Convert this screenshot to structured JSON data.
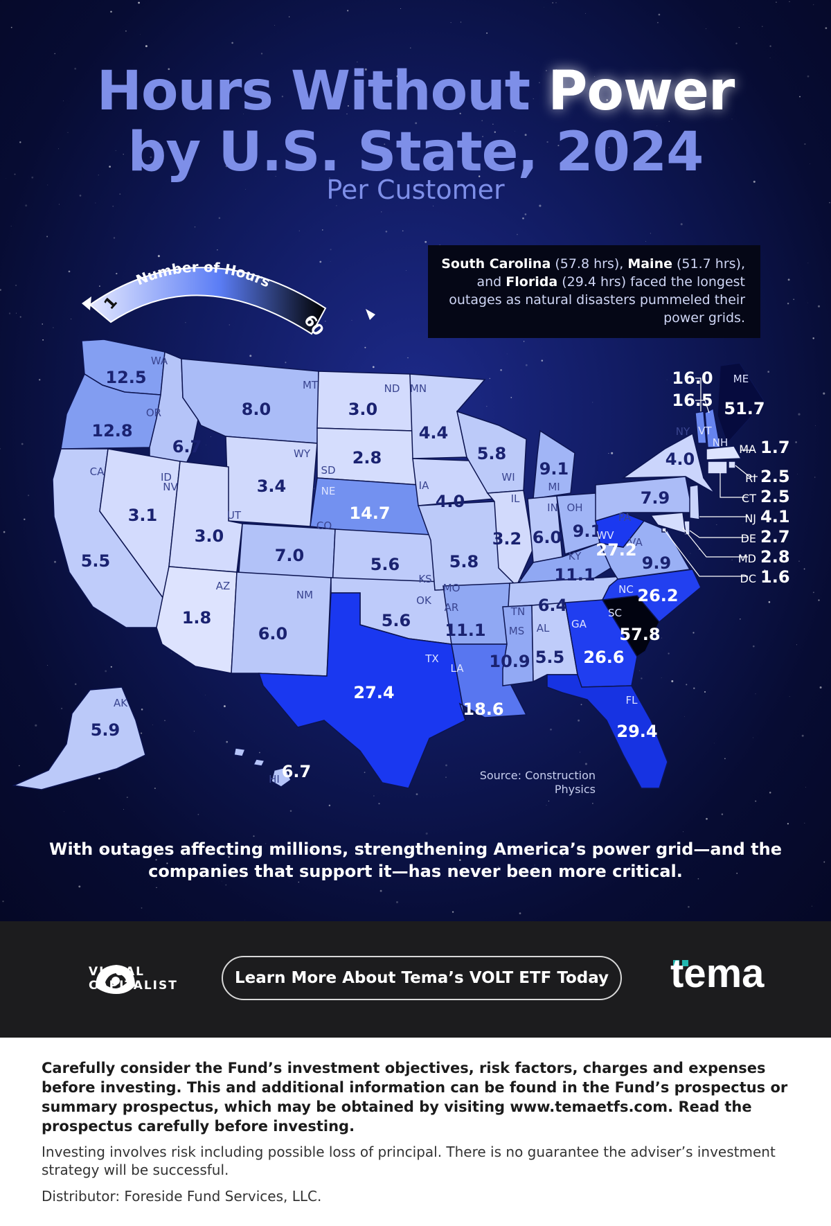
{
  "title": {
    "line1_a": "Hours Without ",
    "line1_b": "Power",
    "line2": "by U.S. State, 2024",
    "subtitle": "Per Customer"
  },
  "legend": {
    "label": "Number of Hours",
    "min": "1",
    "max": "60",
    "color_min": "#e3e7ff",
    "color_mid": "#5b7df5",
    "color_max": "#000000"
  },
  "callout": {
    "s1": "South Carolina",
    "v1": " (57.8 hrs), ",
    "s2": "Maine",
    "v2": " (51.7 hrs), and ",
    "s3": "Florida",
    "v3": " (29.4 hrs) faced the longest outages as natural disasters pummeled their power grids."
  },
  "map_data": {
    "unit": "hours per customer",
    "states": [
      {
        "abbr": "WA",
        "value": 12.5
      },
      {
        "abbr": "OR",
        "value": 12.8
      },
      {
        "abbr": "CA",
        "value": 5.5
      },
      {
        "abbr": "ID",
        "value": 6.7
      },
      {
        "abbr": "NV",
        "value": 3.1
      },
      {
        "abbr": "MT",
        "value": 8.0
      },
      {
        "abbr": "WY",
        "value": 3.4
      },
      {
        "abbr": "UT",
        "value": 3.0
      },
      {
        "abbr": "AZ",
        "value": 1.8
      },
      {
        "abbr": "CO",
        "value": 7.0
      },
      {
        "abbr": "NM",
        "value": 6.0
      },
      {
        "abbr": "ND",
        "value": 3.0
      },
      {
        "abbr": "SD",
        "value": 2.8
      },
      {
        "abbr": "NE",
        "value": 14.7
      },
      {
        "abbr": "KS",
        "value": 5.6
      },
      {
        "abbr": "OK",
        "value": 5.6
      },
      {
        "abbr": "TX",
        "value": 27.4
      },
      {
        "abbr": "MN",
        "value": 4.4
      },
      {
        "abbr": "IA",
        "value": 4.0
      },
      {
        "abbr": "MO",
        "value": 5.8
      },
      {
        "abbr": "AR",
        "value": 11.1
      },
      {
        "abbr": "LA",
        "value": 18.6
      },
      {
        "abbr": "WI",
        "value": 5.8
      },
      {
        "abbr": "IL",
        "value": 3.2
      },
      {
        "abbr": "MI",
        "value": 9.1
      },
      {
        "abbr": "IN",
        "value": 6.0
      },
      {
        "abbr": "OH",
        "value": 9.1
      },
      {
        "abbr": "KY",
        "value": 11.1
      },
      {
        "abbr": "TN",
        "value": 6.4
      },
      {
        "abbr": "MS",
        "value": 10.9
      },
      {
        "abbr": "AL",
        "value": 5.5
      },
      {
        "abbr": "GA",
        "value": 26.6
      },
      {
        "abbr": "FL",
        "value": 29.4
      },
      {
        "abbr": "SC",
        "value": 57.8
      },
      {
        "abbr": "NC",
        "value": 26.2
      },
      {
        "abbr": "VA",
        "value": 9.9
      },
      {
        "abbr": "WV",
        "value": 27.2
      },
      {
        "abbr": "PA",
        "value": 7.9
      },
      {
        "abbr": "NY",
        "value": 4.0
      },
      {
        "abbr": "VT",
        "value": 16.0
      },
      {
        "abbr": "NH",
        "value": 16.5
      },
      {
        "abbr": "ME",
        "value": 51.7
      },
      {
        "abbr": "MA",
        "value": 1.7
      },
      {
        "abbr": "RI",
        "value": 2.5
      },
      {
        "abbr": "CT",
        "value": 2.5
      },
      {
        "abbr": "NJ",
        "value": 4.1
      },
      {
        "abbr": "DE",
        "value": 2.7
      },
      {
        "abbr": "MD",
        "value": 2.8
      },
      {
        "abbr": "DC",
        "value": 1.6
      },
      {
        "abbr": "AK",
        "value": 5.9
      },
      {
        "abbr": "HI",
        "value": 6.7
      }
    ]
  },
  "source": "Source: Construction Physics",
  "bottom_message": "With outages affecting millions, strengthening America’s power grid—and the companies that support it—has never been more critical.",
  "footer": {
    "brand_line1": "VISUAL",
    "brand_line2": "CAPITALIST",
    "cta_label": "Learn More About Tema’s VOLT ETF Today",
    "partner": "tema",
    "accent": "#22b8b0"
  },
  "disclaimer": {
    "bold": "Carefully consider the Fund’s investment objectives, risk factors, charges and expenses before investing. This and additional information can be found in the Fund’s prospectus or summary prospectus, which may be obtained by visiting www.temaetfs.com. Read the prospectus carefully before investing.",
    "risk": "Investing involves risk including possible loss of principal. There is no guarantee the adviser’s investment strategy will be successful.",
    "distributor": "Distributor: Foreside Fund Services, LLC."
  }
}
